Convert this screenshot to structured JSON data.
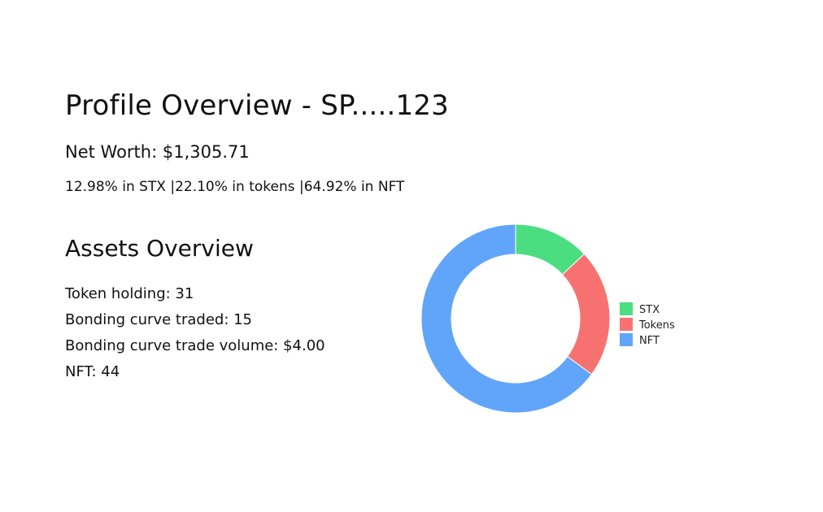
{
  "profile": {
    "title": "Profile Overview - SP.....123",
    "net_worth": "Net Worth: $1,305.71",
    "allocation": "12.98% in STX |22.10% in tokens |64.92% in NFT"
  },
  "assets": {
    "title": "Assets Overview",
    "stats": [
      "Token holding: 31",
      "Bonding curve traded: 15",
      "Bonding curve trade volume: $4.00",
      "NFT: 44"
    ]
  },
  "chart_data": {
    "type": "pie",
    "hole": "donut",
    "categories": [
      "STX",
      "Tokens",
      "NFT"
    ],
    "values": [
      12.98,
      22.1,
      64.92
    ],
    "colors": [
      "#4ade80",
      "#f87171",
      "#60a5fa"
    ],
    "legend_placement": "right"
  }
}
